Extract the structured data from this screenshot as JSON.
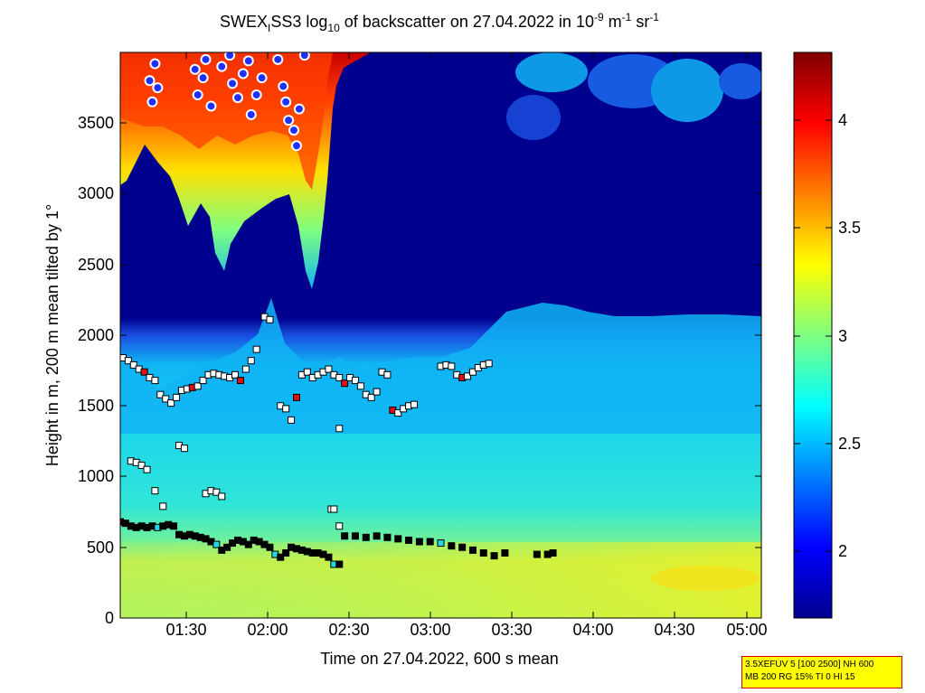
{
  "chart_data": {
    "type": "heatmap",
    "title_parts": {
      "prefix": "SWEX",
      "sub1": "I",
      "name": "SS3 log",
      "sub2": "10",
      "middle": " of backscatter on 27.04.2022 in 10",
      "exp1": "-9",
      "unit1": " m",
      "exp2": "-1",
      "unit2": " sr",
      "exp3": "-1"
    },
    "xlabel": "Time on 27.04.2022, 600 s mean",
    "ylabel": "Height in m, 200 m mean tilted by 1°",
    "xlim": [
      "01:06",
      "05:06"
    ],
    "ylim": [
      0,
      4000
    ],
    "x_ticks": [
      "01:30",
      "02:00",
      "02:30",
      "03:00",
      "03:30",
      "04:00",
      "04:30",
      "05:00"
    ],
    "y_ticks": [
      0,
      500,
      1000,
      1500,
      2000,
      2500,
      3000,
      3500
    ],
    "colorbar": {
      "range": [
        1.7,
        4.3
      ],
      "ticks": [
        2,
        2.5,
        3,
        3.5,
        4
      ],
      "tick_labels": [
        "2",
        "2.5",
        "3",
        "3.5",
        "4"
      ],
      "colormap": "jet"
    },
    "field_description": {
      "surface_layer_value": 3.05,
      "boundary_layer_value": 2.7,
      "free_troposphere_value": 1.75,
      "cloud_peak_value": 4.2
    },
    "series": [
      {
        "marker": "square",
        "points": [
          [
            "01:07",
            1840
          ],
          [
            "01:09",
            1820
          ],
          [
            "01:11",
            1790
          ],
          [
            "01:13",
            1760
          ],
          [
            "01:15",
            1740
          ],
          [
            "01:17",
            1700
          ],
          [
            "01:19",
            1680
          ],
          [
            "01:21",
            1580
          ],
          [
            "01:23",
            1550
          ],
          [
            "01:25",
            1520
          ],
          [
            "01:27",
            1560
          ],
          [
            "01:29",
            1610
          ],
          [
            "01:31",
            1620
          ],
          [
            "01:33",
            1630
          ],
          [
            "01:35",
            1640
          ],
          [
            "01:37",
            1680
          ],
          [
            "01:39",
            1720
          ],
          [
            "01:41",
            1730
          ],
          [
            "01:43",
            1720
          ],
          [
            "01:45",
            1710
          ],
          [
            "01:47",
            1700
          ],
          [
            "01:49",
            1720
          ],
          [
            "01:51",
            1680
          ],
          [
            "01:53",
            1760
          ],
          [
            "01:55",
            1820
          ],
          [
            "01:57",
            1900
          ],
          [
            "02:00",
            2130
          ],
          [
            "02:02",
            2110
          ],
          [
            "02:06",
            1500
          ],
          [
            "02:08",
            1480
          ],
          [
            "02:10",
            1400
          ],
          [
            "02:12",
            1560
          ],
          [
            "02:14",
            1720
          ],
          [
            "02:16",
            1740
          ],
          [
            "02:18",
            1700
          ],
          [
            "02:20",
            1720
          ],
          [
            "02:22",
            1740
          ],
          [
            "02:24",
            1760
          ],
          [
            "02:26",
            1720
          ],
          [
            "02:28",
            1700
          ],
          [
            "02:30",
            1660
          ],
          [
            "02:32",
            1700
          ],
          [
            "02:34",
            1680
          ],
          [
            "02:36",
            1640
          ],
          [
            "02:38",
            1580
          ],
          [
            "02:40",
            1560
          ],
          [
            "02:42",
            1600
          ],
          [
            "02:44",
            1740
          ],
          [
            "02:46",
            1720
          ],
          [
            "02:48",
            1470
          ],
          [
            "02:50",
            1450
          ],
          [
            "02:52",
            1480
          ],
          [
            "02:54",
            1500
          ],
          [
            "02:56",
            1510
          ],
          [
            "03:06",
            1780
          ],
          [
            "03:08",
            1790
          ],
          [
            "03:10",
            1780
          ],
          [
            "03:12",
            1720
          ],
          [
            "03:14",
            1700
          ],
          [
            "03:16",
            1710
          ],
          [
            "03:18",
            1740
          ],
          [
            "03:20",
            1770
          ],
          [
            "03:22",
            1790
          ],
          [
            "03:24",
            1800
          ]
        ]
      },
      {
        "marker": "square",
        "points": [
          [
            "01:10",
            1110
          ],
          [
            "01:12",
            1100
          ],
          [
            "01:14",
            1080
          ],
          [
            "01:16",
            1050
          ],
          [
            "01:19",
            900
          ],
          [
            "01:22",
            790
          ],
          [
            "01:28",
            1220
          ],
          [
            "01:30",
            1200
          ],
          [
            "01:38",
            880
          ],
          [
            "01:40",
            900
          ],
          [
            "01:42",
            890
          ],
          [
            "01:44",
            860
          ],
          [
            "02:25",
            770
          ],
          [
            "02:26",
            770
          ],
          [
            "02:28",
            650
          ],
          [
            "02:28",
            1340
          ]
        ]
      },
      {
        "marker": "square",
        "points": [
          [
            "01:06",
            680
          ],
          [
            "01:08",
            670
          ],
          [
            "01:10",
            650
          ],
          [
            "01:12",
            640
          ],
          [
            "01:14",
            650
          ],
          [
            "01:16",
            640
          ],
          [
            "01:18",
            650
          ],
          [
            "01:20",
            640
          ],
          [
            "01:22",
            650
          ],
          [
            "01:24",
            660
          ],
          [
            "01:26",
            650
          ],
          [
            "01:28",
            590
          ],
          [
            "01:30",
            580
          ],
          [
            "01:32",
            590
          ],
          [
            "01:34",
            580
          ],
          [
            "01:36",
            570
          ],
          [
            "01:38",
            560
          ],
          [
            "01:40",
            540
          ],
          [
            "01:42",
            520
          ],
          [
            "01:44",
            480
          ],
          [
            "01:46",
            500
          ],
          [
            "01:48",
            530
          ],
          [
            "01:50",
            550
          ],
          [
            "01:52",
            540
          ],
          [
            "01:54",
            520
          ],
          [
            "01:56",
            550
          ],
          [
            "01:58",
            540
          ],
          [
            "02:00",
            520
          ],
          [
            "02:02",
            500
          ],
          [
            "02:04",
            450
          ],
          [
            "02:06",
            430
          ],
          [
            "02:08",
            460
          ],
          [
            "02:10",
            500
          ],
          [
            "02:12",
            490
          ],
          [
            "02:14",
            480
          ],
          [
            "02:16",
            470
          ],
          [
            "02:18",
            460
          ],
          [
            "02:20",
            460
          ],
          [
            "02:22",
            450
          ],
          [
            "02:24",
            430
          ],
          [
            "02:26",
            380
          ],
          [
            "02:28",
            380
          ],
          [
            "02:30",
            580
          ],
          [
            "02:34",
            580
          ],
          [
            "02:38",
            570
          ],
          [
            "02:42",
            580
          ],
          [
            "02:46",
            570
          ],
          [
            "02:50",
            560
          ],
          [
            "02:54",
            550
          ],
          [
            "02:58",
            540
          ],
          [
            "03:02",
            540
          ],
          [
            "03:06",
            530
          ],
          [
            "03:10",
            510
          ],
          [
            "03:14",
            500
          ],
          [
            "03:18",
            480
          ],
          [
            "03:22",
            460
          ],
          [
            "03:26",
            440
          ],
          [
            "03:30",
            460
          ],
          [
            "03:42",
            450
          ],
          [
            "03:46",
            450
          ],
          [
            "03:48",
            460
          ]
        ]
      },
      {
        "marker": "circle",
        "points": [
          [
            "01:17",
            3800
          ],
          [
            "01:18",
            3650
          ],
          [
            "01:19",
            3920
          ],
          [
            "01:20",
            3750
          ],
          [
            "01:34",
            3880
          ],
          [
            "01:35",
            3700
          ],
          [
            "01:37",
            3820
          ],
          [
            "01:38",
            3950
          ],
          [
            "01:40",
            3620
          ],
          [
            "01:44",
            3900
          ],
          [
            "01:47",
            3980
          ],
          [
            "01:48",
            3780
          ],
          [
            "01:50",
            3680
          ],
          [
            "01:52",
            3850
          ],
          [
            "01:54",
            3940
          ],
          [
            "01:55",
            3560
          ],
          [
            "01:57",
            3700
          ],
          [
            "01:59",
            3820
          ],
          [
            "02:05",
            3950
          ],
          [
            "02:07",
            3760
          ],
          [
            "02:08",
            3650
          ],
          [
            "02:09",
            3520
          ],
          [
            "02:11",
            3450
          ],
          [
            "02:12",
            3340
          ],
          [
            "02:13",
            3600
          ],
          [
            "02:15",
            3980
          ]
        ]
      }
    ]
  },
  "info_box": {
    "line1": "3.5XEFUV 5 [100 2500] NH 600",
    "line2": "MB 200 RG 15% TI 0 HI 15"
  }
}
